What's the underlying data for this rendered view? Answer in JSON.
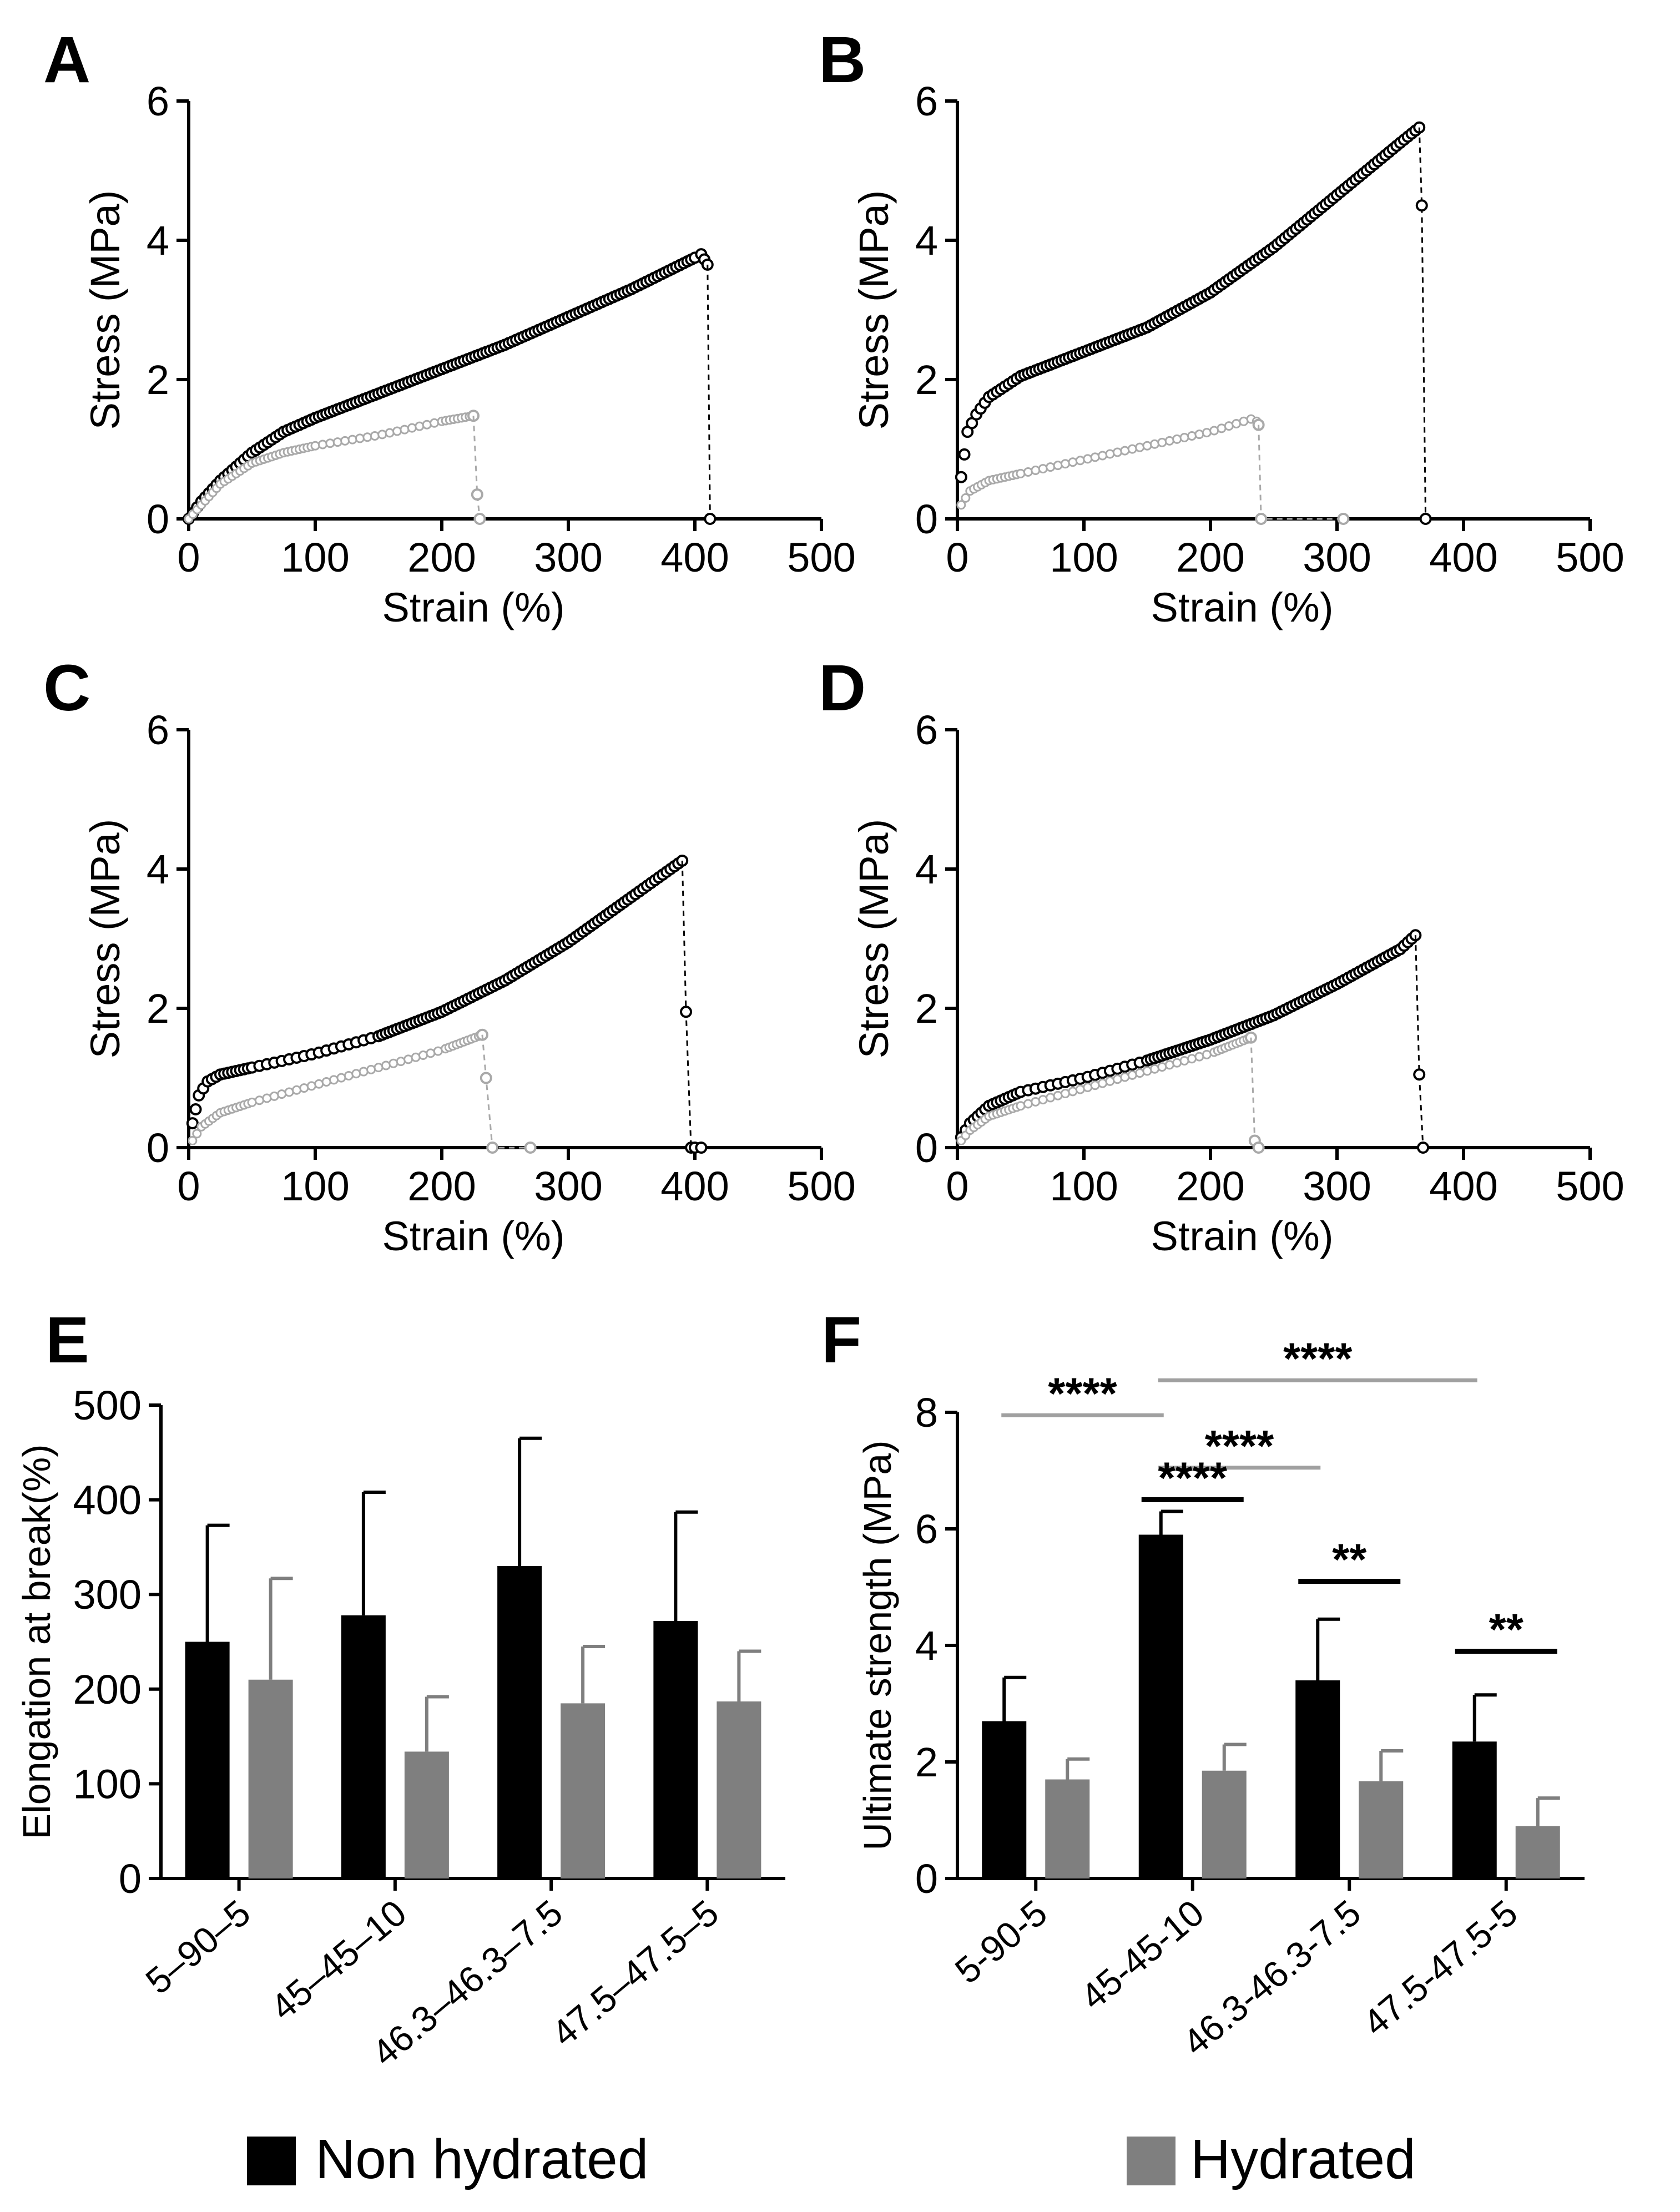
{
  "colors": {
    "non_hydrated": "#000000",
    "hydrated": "#7f7f7f",
    "hydrated_curve": "#a9a9a9",
    "sig_gray": "#a0a0a0",
    "sig_black": "#000000"
  },
  "legend": {
    "non_hydrated_label": "Non hydrated",
    "hydrated_label": "Hydrated"
  },
  "chart_data": [
    {
      "panel": "A",
      "type": "line",
      "xlabel": "Strain (%)",
      "ylabel": "Stress (MPa)",
      "xlim": [
        0,
        500
      ],
      "ylim": [
        0,
        6
      ],
      "xticks": [
        0,
        100,
        200,
        300,
        400,
        500
      ],
      "yticks": [
        0,
        2,
        4,
        6
      ],
      "series": [
        {
          "name": "Non hydrated",
          "x": [
            0,
            10,
            25,
            50,
            75,
            100,
            150,
            200,
            250,
            300,
            350,
            400,
            405,
            410,
            412
          ],
          "y": [
            0,
            0.25,
            0.55,
            0.95,
            1.25,
            1.45,
            1.8,
            2.15,
            2.5,
            2.9,
            3.3,
            3.75,
            3.8,
            3.65,
            0
          ]
        },
        {
          "name": "Hydrated",
          "x": [
            0,
            10,
            25,
            50,
            75,
            100,
            150,
            200,
            225,
            228,
            230
          ],
          "y": [
            0,
            0.2,
            0.5,
            0.8,
            0.95,
            1.05,
            1.2,
            1.4,
            1.48,
            0.35,
            0
          ]
        }
      ]
    },
    {
      "panel": "B",
      "type": "line",
      "xlabel": "Strain (%)",
      "ylabel": "Stress (MPa)",
      "xlim": [
        0,
        500
      ],
      "ylim": [
        0,
        6
      ],
      "xticks": [
        0,
        100,
        200,
        300,
        400,
        500
      ],
      "yticks": [
        0,
        2,
        4,
        6
      ],
      "series": [
        {
          "name": "Non hydrated",
          "x": [
            3,
            8,
            15,
            25,
            50,
            100,
            150,
            200,
            250,
            300,
            350,
            365,
            367,
            370
          ],
          "y": [
            0.6,
            1.25,
            1.5,
            1.75,
            2.05,
            2.4,
            2.75,
            3.25,
            3.9,
            4.65,
            5.4,
            5.62,
            4.5,
            0
          ]
        },
        {
          "name": "Hydrated",
          "x": [
            3,
            10,
            25,
            50,
            100,
            150,
            200,
            235,
            238,
            240,
            305
          ],
          "y": [
            0.2,
            0.4,
            0.55,
            0.65,
            0.85,
            1.05,
            1.25,
            1.45,
            1.35,
            0,
            0
          ]
        }
      ]
    },
    {
      "panel": "C",
      "type": "line",
      "xlabel": "Strain (%)",
      "ylabel": "Stress (MPa)",
      "xlim": [
        0,
        500
      ],
      "ylim": [
        0,
        6
      ],
      "xticks": [
        0,
        100,
        200,
        300,
        400,
        500
      ],
      "yticks": [
        0,
        2,
        4,
        6
      ],
      "series": [
        {
          "name": "Non hydrated",
          "x": [
            3,
            8,
            15,
            25,
            50,
            100,
            150,
            200,
            250,
            300,
            350,
            390,
            393,
            397,
            400,
            405
          ],
          "y": [
            0.35,
            0.75,
            0.95,
            1.05,
            1.15,
            1.35,
            1.6,
            1.95,
            2.4,
            2.95,
            3.6,
            4.12,
            1.95,
            0,
            0,
            0
          ]
        },
        {
          "name": "Hydrated",
          "x": [
            3,
            10,
            25,
            50,
            100,
            150,
            200,
            232,
            235,
            240,
            270
          ],
          "y": [
            0.1,
            0.3,
            0.5,
            0.65,
            0.9,
            1.15,
            1.4,
            1.62,
            1.0,
            0,
            0
          ]
        }
      ]
    },
    {
      "panel": "D",
      "type": "line",
      "xlabel": "Strain (%)",
      "ylabel": "Stress (MPa)",
      "xlim": [
        0,
        500
      ],
      "ylim": [
        0,
        6
      ],
      "xticks": [
        0,
        100,
        200,
        300,
        400,
        500
      ],
      "yticks": [
        0,
        2,
        4,
        6
      ],
      "series": [
        {
          "name": "Non hydrated",
          "x": [
            3,
            10,
            25,
            50,
            100,
            150,
            200,
            250,
            300,
            350,
            362,
            365,
            368
          ],
          "y": [
            0.15,
            0.35,
            0.6,
            0.8,
            1.0,
            1.25,
            1.55,
            1.9,
            2.35,
            2.85,
            3.05,
            1.05,
            0
          ]
        },
        {
          "name": "Hydrated",
          "x": [
            3,
            10,
            25,
            50,
            100,
            150,
            200,
            232,
            235,
            238
          ],
          "y": [
            0.1,
            0.25,
            0.45,
            0.6,
            0.85,
            1.1,
            1.35,
            1.58,
            0.1,
            0
          ]
        }
      ]
    },
    {
      "panel": "E",
      "type": "bar",
      "ylabel": "Elongation at break(%)",
      "ylim": [
        0,
        500
      ],
      "yticks": [
        0,
        100,
        200,
        300,
        400,
        500
      ],
      "categories": [
        "5–90–5",
        "45–45–10",
        "46.3–46.3–7.5",
        "47.5–47.5–5"
      ],
      "series": [
        {
          "name": "Non hydrated",
          "values": [
            250,
            278,
            330,
            272
          ],
          "errors": [
            123,
            130,
            135,
            115
          ]
        },
        {
          "name": "Hydrated",
          "values": [
            210,
            134,
            185,
            187
          ],
          "errors": [
            107,
            58,
            60,
            53
          ]
        }
      ],
      "significance": []
    },
    {
      "panel": "F",
      "type": "bar",
      "ylabel": "Ultimate strength (MPa)",
      "ylim": [
        0,
        8
      ],
      "yticks": [
        0,
        2,
        4,
        6,
        8
      ],
      "categories": [
        "5-90-5",
        "45-45-10",
        "46.3-46.3-7.5",
        "47.5-47.5-5"
      ],
      "series": [
        {
          "name": "Non hydrated",
          "values": [
            2.7,
            5.9,
            3.4,
            2.35
          ],
          "errors": [
            0.75,
            0.4,
            1.05,
            0.8
          ]
        },
        {
          "name": "Hydrated",
          "values": [
            1.7,
            1.85,
            1.67,
            0.9
          ],
          "errors": [
            0.35,
            0.45,
            0.52,
            0.48
          ]
        }
      ],
      "significance": [
        {
          "from": [
            0,
            0
          ],
          "to": [
            1,
            0
          ],
          "label": "****",
          "y": 7.95,
          "color": "gray"
        },
        {
          "from": [
            1,
            0
          ],
          "to": [
            3,
            0
          ],
          "label": "****",
          "y": 8.55,
          "color": "gray"
        },
        {
          "from": [
            1,
            0
          ],
          "to": [
            2,
            0
          ],
          "label": "****",
          "y": 7.05,
          "color": "gray"
        },
        {
          "from": [
            1,
            0
          ],
          "to": [
            1,
            1
          ],
          "label": "****",
          "y": 6.5,
          "color": "black"
        },
        {
          "from": [
            2,
            0
          ],
          "to": [
            2,
            1
          ],
          "label": "**",
          "y": 5.1,
          "color": "black"
        },
        {
          "from": [
            3,
            0
          ],
          "to": [
            3,
            1
          ],
          "label": "**",
          "y": 3.9,
          "color": "black"
        }
      ]
    }
  ]
}
